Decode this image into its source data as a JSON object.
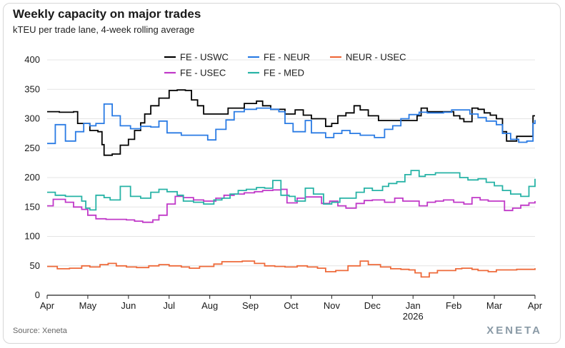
{
  "header": {
    "title": "Weekly capacity on major trades",
    "subtitle": "kTEU per trade lane, 4-week rolling average"
  },
  "footer": {
    "source": "Source: Xeneta",
    "brand": "XENETA"
  },
  "chart_data": {
    "type": "line",
    "title": "Weekly capacity on major trades",
    "subtitle": "kTEU per trade lane, 4-week rolling average",
    "xlabel": "",
    "ylabel": "",
    "ylim": [
      0,
      400
    ],
    "yticks": [
      0,
      50,
      100,
      150,
      200,
      250,
      300,
      350,
      400
    ],
    "xlim": [
      0,
      12
    ],
    "xticks": [
      {
        "pos": 0,
        "label": "Apr"
      },
      {
        "pos": 1,
        "label": "May"
      },
      {
        "pos": 2,
        "label": "Jun"
      },
      {
        "pos": 3,
        "label": "Jul"
      },
      {
        "pos": 4,
        "label": "Aug"
      },
      {
        "pos": 5,
        "label": "Sep"
      },
      {
        "pos": 6,
        "label": "Oct"
      },
      {
        "pos": 7,
        "label": "Nov"
      },
      {
        "pos": 8,
        "label": "Dec"
      },
      {
        "pos": 9,
        "label": "Jan",
        "sublabel": "2026"
      },
      {
        "pos": 10,
        "label": "Feb"
      },
      {
        "pos": 11,
        "label": "Mar"
      },
      {
        "pos": 12,
        "label": "Apr"
      }
    ],
    "grid": true,
    "legend_position": "top-center",
    "series": [
      {
        "name": "FE - USWC",
        "color": "#000000",
        "points": [
          [
            0,
            312
          ],
          [
            0.3,
            311
          ],
          [
            0.65,
            312
          ],
          [
            0.75,
            292
          ],
          [
            0.95,
            292
          ],
          [
            1.05,
            280
          ],
          [
            1.25,
            278
          ],
          [
            1.35,
            256
          ],
          [
            1.4,
            238
          ],
          [
            1.6,
            240
          ],
          [
            1.8,
            255
          ],
          [
            2,
            265
          ],
          [
            2.15,
            280
          ],
          [
            2.3,
            293
          ],
          [
            2.4,
            308
          ],
          [
            2.55,
            322
          ],
          [
            2.75,
            335
          ],
          [
            3,
            348
          ],
          [
            3.2,
            349
          ],
          [
            3.4,
            348
          ],
          [
            3.55,
            332
          ],
          [
            3.7,
            322
          ],
          [
            3.85,
            308
          ],
          [
            4.1,
            308
          ],
          [
            4.25,
            308
          ],
          [
            4.45,
            318
          ],
          [
            4.7,
            318
          ],
          [
            4.85,
            326
          ],
          [
            5.15,
            330
          ],
          [
            5.3,
            322
          ],
          [
            5.5,
            316
          ],
          [
            5.85,
            308
          ],
          [
            6.1,
            315
          ],
          [
            6.3,
            306
          ],
          [
            6.5,
            300
          ],
          [
            6.7,
            300
          ],
          [
            6.85,
            287
          ],
          [
            7,
            292
          ],
          [
            7.15,
            305
          ],
          [
            7.35,
            310
          ],
          [
            7.55,
            322
          ],
          [
            7.7,
            315
          ],
          [
            7.9,
            305
          ],
          [
            8.15,
            297
          ],
          [
            8.4,
            297
          ],
          [
            8.6,
            297
          ],
          [
            8.8,
            297
          ],
          [
            9,
            297
          ],
          [
            9.1,
            305
          ],
          [
            9.2,
            318
          ],
          [
            9.35,
            312
          ],
          [
            9.6,
            312
          ],
          [
            9.8,
            312
          ],
          [
            10,
            305
          ],
          [
            10.15,
            300
          ],
          [
            10.25,
            295
          ],
          [
            10.45,
            318
          ],
          [
            10.6,
            316
          ],
          [
            10.75,
            310
          ],
          [
            10.9,
            306
          ],
          [
            11.05,
            300
          ],
          [
            11.2,
            278
          ],
          [
            11.3,
            262
          ],
          [
            11.45,
            262
          ],
          [
            11.55,
            270
          ],
          [
            11.7,
            270
          ],
          [
            11.85,
            270
          ],
          [
            11.95,
            305
          ],
          [
            12,
            305
          ]
        ]
      },
      {
        "name": "FE - NEUR",
        "color": "#2a7be4",
        "points": [
          [
            0,
            258
          ],
          [
            0.2,
            290
          ],
          [
            0.45,
            262
          ],
          [
            0.7,
            278
          ],
          [
            0.9,
            292
          ],
          [
            1.05,
            288
          ],
          [
            1.2,
            292
          ],
          [
            1.4,
            325
          ],
          [
            1.6,
            305
          ],
          [
            1.8,
            288
          ],
          [
            2.05,
            283
          ],
          [
            2.3,
            287
          ],
          [
            2.55,
            286
          ],
          [
            2.75,
            296
          ],
          [
            2.95,
            276
          ],
          [
            3.3,
            272
          ],
          [
            3.55,
            272
          ],
          [
            3.7,
            272
          ],
          [
            3.95,
            264
          ],
          [
            4.15,
            282
          ],
          [
            4.4,
            298
          ],
          [
            4.6,
            312
          ],
          [
            4.85,
            316
          ],
          [
            5.15,
            318
          ],
          [
            5.35,
            318
          ],
          [
            5.5,
            316
          ],
          [
            5.7,
            312
          ],
          [
            5.85,
            292
          ],
          [
            6.05,
            278
          ],
          [
            6.35,
            297
          ],
          [
            6.5,
            276
          ],
          [
            6.7,
            276
          ],
          [
            6.85,
            268
          ],
          [
            7.05,
            275
          ],
          [
            7.25,
            280
          ],
          [
            7.45,
            275
          ],
          [
            7.7,
            272
          ],
          [
            8.05,
            268
          ],
          [
            8.3,
            282
          ],
          [
            8.5,
            288
          ],
          [
            8.7,
            300
          ],
          [
            8.9,
            307
          ],
          [
            9.15,
            311
          ],
          [
            9.35,
            310
          ],
          [
            9.55,
            310
          ],
          [
            9.75,
            311
          ],
          [
            9.95,
            315
          ],
          [
            10.15,
            315
          ],
          [
            10.4,
            308
          ],
          [
            10.6,
            302
          ],
          [
            10.8,
            296
          ],
          [
            11.05,
            290
          ],
          [
            11.2,
            275
          ],
          [
            11.4,
            265
          ],
          [
            11.6,
            260
          ],
          [
            11.8,
            262
          ],
          [
            11.95,
            292
          ],
          [
            12,
            298
          ]
        ]
      },
      {
        "name": "NEUR - USEC",
        "color": "#ee6a3a",
        "points": [
          [
            0,
            49
          ],
          [
            0.25,
            45
          ],
          [
            0.55,
            46
          ],
          [
            0.85,
            50
          ],
          [
            1.05,
            48
          ],
          [
            1.3,
            52
          ],
          [
            1.5,
            54
          ],
          [
            1.7,
            50
          ],
          [
            1.95,
            48
          ],
          [
            2.2,
            47
          ],
          [
            2.5,
            50
          ],
          [
            2.75,
            52
          ],
          [
            3,
            50
          ],
          [
            3.3,
            48
          ],
          [
            3.5,
            46
          ],
          [
            3.75,
            49
          ],
          [
            4.1,
            53
          ],
          [
            4.3,
            57
          ],
          [
            4.55,
            57
          ],
          [
            4.8,
            58
          ],
          [
            5.1,
            54
          ],
          [
            5.35,
            50
          ],
          [
            5.6,
            49
          ],
          [
            5.85,
            48
          ],
          [
            6.15,
            50
          ],
          [
            6.4,
            48
          ],
          [
            6.65,
            46
          ],
          [
            6.85,
            40
          ],
          [
            7.1,
            42
          ],
          [
            7.4,
            50
          ],
          [
            7.7,
            58
          ],
          [
            7.9,
            52
          ],
          [
            8.2,
            48
          ],
          [
            8.45,
            45
          ],
          [
            8.7,
            44
          ],
          [
            8.9,
            43
          ],
          [
            9.05,
            38
          ],
          [
            9.2,
            31
          ],
          [
            9.4,
            38
          ],
          [
            9.6,
            42
          ],
          [
            9.8,
            42
          ],
          [
            10.05,
            45
          ],
          [
            10.2,
            46
          ],
          [
            10.45,
            44
          ],
          [
            10.6,
            42
          ],
          [
            10.85,
            40
          ],
          [
            11.05,
            43
          ],
          [
            11.3,
            43
          ],
          [
            11.55,
            44
          ],
          [
            11.8,
            44
          ],
          [
            12,
            46
          ]
        ]
      },
      {
        "name": "FE - USEC",
        "color": "#c038c8",
        "points": [
          [
            0,
            152
          ],
          [
            0.15,
            163
          ],
          [
            0.45,
            158
          ],
          [
            0.65,
            150
          ],
          [
            0.85,
            146
          ],
          [
            1,
            136
          ],
          [
            1.2,
            130
          ],
          [
            1.45,
            129
          ],
          [
            1.7,
            129
          ],
          [
            1.95,
            128
          ],
          [
            2.15,
            126
          ],
          [
            2.35,
            124
          ],
          [
            2.6,
            128
          ],
          [
            2.75,
            136
          ],
          [
            2.95,
            155
          ],
          [
            3.15,
            168
          ],
          [
            3.35,
            166
          ],
          [
            3.6,
            162
          ],
          [
            3.85,
            160
          ],
          [
            4.15,
            165
          ],
          [
            4.35,
            170
          ],
          [
            4.6,
            172
          ],
          [
            4.85,
            174
          ],
          [
            5.1,
            176
          ],
          [
            5.3,
            178
          ],
          [
            5.55,
            179
          ],
          [
            5.75,
            180
          ],
          [
            5.9,
            157
          ],
          [
            6.15,
            165
          ],
          [
            6.35,
            167
          ],
          [
            6.55,
            167
          ],
          [
            6.75,
            156
          ],
          [
            6.95,
            160
          ],
          [
            7.15,
            152
          ],
          [
            7.35,
            148
          ],
          [
            7.6,
            156
          ],
          [
            7.8,
            161
          ],
          [
            8,
            162
          ],
          [
            8.3,
            158
          ],
          [
            8.55,
            165
          ],
          [
            8.75,
            160
          ],
          [
            9,
            160
          ],
          [
            9.15,
            152
          ],
          [
            9.35,
            158
          ],
          [
            9.55,
            160
          ],
          [
            9.75,
            162
          ],
          [
            10,
            158
          ],
          [
            10.25,
            155
          ],
          [
            10.45,
            166
          ],
          [
            10.65,
            162
          ],
          [
            10.85,
            160
          ],
          [
            11.05,
            160
          ],
          [
            11.25,
            144
          ],
          [
            11.45,
            148
          ],
          [
            11.65,
            153
          ],
          [
            11.85,
            157
          ],
          [
            12,
            160
          ]
        ]
      },
      {
        "name": "FE - MED",
        "color": "#27b3a6",
        "points": [
          [
            0,
            175
          ],
          [
            0.2,
            170
          ],
          [
            0.45,
            168
          ],
          [
            0.7,
            168
          ],
          [
            0.85,
            160
          ],
          [
            0.95,
            148
          ],
          [
            1.05,
            145
          ],
          [
            1.2,
            170
          ],
          [
            1.4,
            166
          ],
          [
            1.55,
            162
          ],
          [
            1.8,
            185
          ],
          [
            2.05,
            168
          ],
          [
            2.3,
            165
          ],
          [
            2.55,
            175
          ],
          [
            2.75,
            180
          ],
          [
            2.95,
            176
          ],
          [
            3.2,
            170
          ],
          [
            3.35,
            160
          ],
          [
            3.6,
            158
          ],
          [
            3.85,
            155
          ],
          [
            4.1,
            162
          ],
          [
            4.3,
            165
          ],
          [
            4.5,
            172
          ],
          [
            4.7,
            178
          ],
          [
            4.9,
            180
          ],
          [
            5.15,
            183
          ],
          [
            5.35,
            182
          ],
          [
            5.55,
            195
          ],
          [
            5.75,
            170
          ],
          [
            5.95,
            168
          ],
          [
            6.1,
            160
          ],
          [
            6.35,
            182
          ],
          [
            6.55,
            172
          ],
          [
            6.8,
            155
          ],
          [
            7,
            158
          ],
          [
            7.2,
            165
          ],
          [
            7.45,
            165
          ],
          [
            7.6,
            175
          ],
          [
            7.8,
            182
          ],
          [
            8,
            178
          ],
          [
            8.25,
            185
          ],
          [
            8.4,
            190
          ],
          [
            8.6,
            193
          ],
          [
            8.8,
            205
          ],
          [
            8.95,
            212
          ],
          [
            9.15,
            202
          ],
          [
            9.3,
            205
          ],
          [
            9.55,
            208
          ],
          [
            9.75,
            208
          ],
          [
            10,
            208
          ],
          [
            10.15,
            200
          ],
          [
            10.35,
            196
          ],
          [
            10.6,
            198
          ],
          [
            10.8,
            192
          ],
          [
            11,
            186
          ],
          [
            11.2,
            178
          ],
          [
            11.4,
            172
          ],
          [
            11.65,
            168
          ],
          [
            11.85,
            185
          ],
          [
            12,
            198
          ]
        ]
      }
    ]
  }
}
